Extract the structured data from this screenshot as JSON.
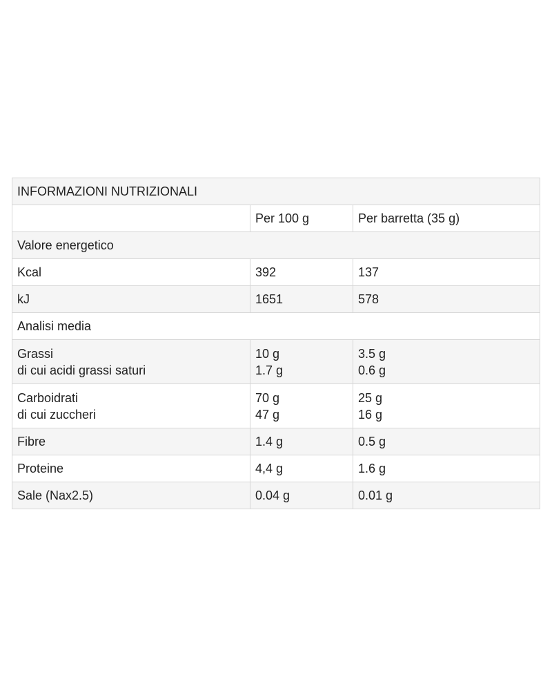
{
  "table": {
    "title": "INFORMAZIONI NUTRIZIONALI",
    "columns": [
      "Per 100 g",
      "Per barretta (35 g)"
    ],
    "rows": [
      {
        "section": "Valore energetico"
      },
      {
        "cells": [
          [
            "Kcal"
          ],
          [
            "392"
          ],
          [
            "137"
          ]
        ]
      },
      {
        "cells": [
          [
            "kJ"
          ],
          [
            "1651"
          ],
          [
            "578"
          ]
        ]
      },
      {
        "section": "Analisi media"
      },
      {
        "cells": [
          [
            "Grassi",
            "di cui acidi grassi saturi"
          ],
          [
            "10 g",
            "1.7 g"
          ],
          [
            "3.5 g",
            "0.6 g"
          ]
        ]
      },
      {
        "cells": [
          [
            "Carboidrati",
            "di cui zuccheri"
          ],
          [
            "70 g",
            "47 g"
          ],
          [
            "25 g",
            "16 g"
          ]
        ]
      },
      {
        "cells": [
          [
            "Fibre"
          ],
          [
            "1.4 g"
          ],
          [
            "0.5 g"
          ]
        ]
      },
      {
        "cells": [
          [
            "Proteine"
          ],
          [
            "4,4 g"
          ],
          [
            "1.6 g"
          ]
        ]
      },
      {
        "cells": [
          [
            "Sale (Nax2.5)"
          ],
          [
            "0.04 g"
          ],
          [
            "0.01 g"
          ]
        ]
      }
    ]
  }
}
